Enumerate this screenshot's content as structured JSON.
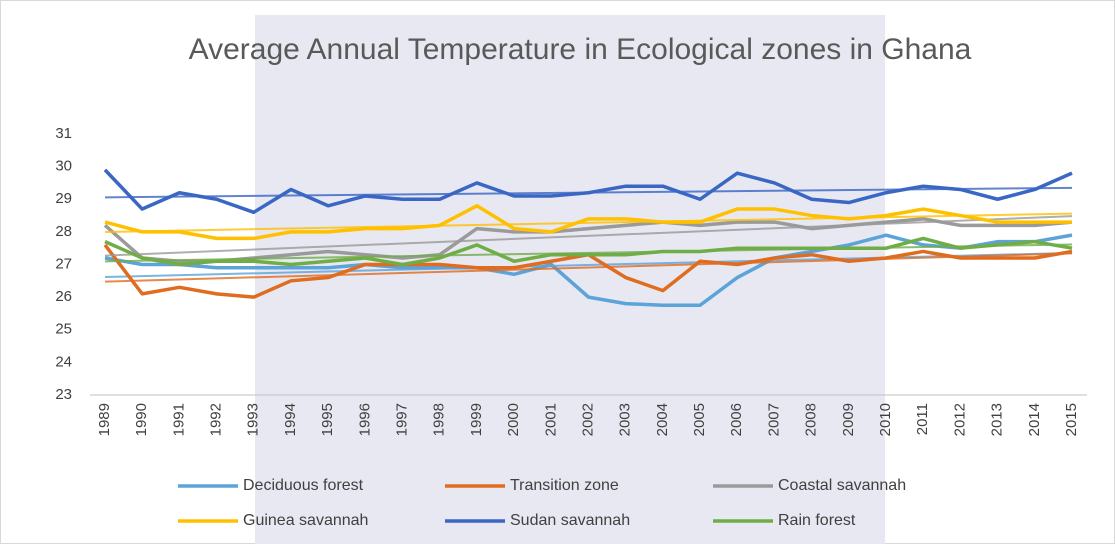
{
  "chart_data": {
    "type": "line",
    "title": "Average Annual Temperature in Ecological zones in Ghana",
    "categories": [
      "1989",
      "1990",
      "1991",
      "1992",
      "1993",
      "1994",
      "1995",
      "1996",
      "1997",
      "1998",
      "1999",
      "2000",
      "2001",
      "2002",
      "2003",
      "2004",
      "2005",
      "2006",
      "2007",
      "2008",
      "2009",
      "2010",
      "2011",
      "2012",
      "2013",
      "2014",
      "2015"
    ],
    "series": [
      {
        "name": "Deciduous forest",
        "color": "#5ba3d9",
        "values": [
          27.2,
          27.0,
          27.0,
          26.9,
          26.9,
          26.9,
          26.9,
          27.0,
          26.9,
          26.9,
          26.9,
          26.7,
          27.0,
          26.0,
          25.8,
          25.75,
          25.75,
          26.6,
          27.2,
          27.4,
          27.6,
          27.9,
          27.6,
          27.5,
          27.7,
          27.7,
          27.9
        ]
      },
      {
        "name": "Transition zone",
        "color": "#e06c1f",
        "values": [
          27.6,
          26.1,
          26.3,
          26.1,
          26.0,
          26.5,
          26.6,
          27.0,
          27.0,
          27.0,
          26.9,
          26.9,
          27.1,
          27.3,
          26.6,
          26.2,
          27.1,
          27.0,
          27.2,
          27.3,
          27.1,
          27.2,
          27.4,
          27.2,
          27.2,
          27.2,
          27.4
        ]
      },
      {
        "name": "Coastal savannah",
        "color": "#9a9a9a",
        "values": [
          28.2,
          27.2,
          27.1,
          27.1,
          27.2,
          27.3,
          27.4,
          27.3,
          27.2,
          27.3,
          28.1,
          28.0,
          28.0,
          28.1,
          28.2,
          28.3,
          28.2,
          28.3,
          28.3,
          28.1,
          28.2,
          28.3,
          28.4,
          28.2,
          28.2,
          28.2,
          28.3
        ]
      },
      {
        "name": "Guinea savannah",
        "color": "#ffc000",
        "values": [
          28.3,
          28.0,
          28.0,
          27.8,
          27.8,
          28.0,
          28.0,
          28.1,
          28.1,
          28.2,
          28.8,
          28.1,
          28.0,
          28.4,
          28.4,
          28.3,
          28.3,
          28.7,
          28.7,
          28.5,
          28.4,
          28.5,
          28.7,
          28.5,
          28.3,
          28.3,
          28.3
        ]
      },
      {
        "name": "Sudan savannah",
        "color": "#3a66c4",
        "values": [
          29.9,
          28.7,
          29.2,
          29.0,
          28.6,
          29.3,
          28.8,
          29.1,
          29.0,
          29.0,
          29.5,
          29.1,
          29.1,
          29.2,
          29.4,
          29.4,
          29.0,
          29.8,
          29.5,
          29.0,
          28.9,
          29.2,
          29.4,
          29.3,
          29.0,
          29.3,
          29.8
        ]
      },
      {
        "name": "Rain forest",
        "color": "#70ad47",
        "values": [
          27.7,
          27.2,
          27.0,
          27.1,
          27.1,
          27.0,
          27.1,
          27.2,
          27.0,
          27.2,
          27.6,
          27.1,
          27.3,
          27.3,
          27.3,
          27.4,
          27.4,
          27.5,
          27.5,
          27.5,
          27.5,
          27.5,
          27.8,
          27.5,
          27.6,
          27.7,
          27.5
        ]
      }
    ],
    "ylim": [
      23,
      31
    ],
    "yticks": [
      23,
      24,
      25,
      26,
      27,
      28,
      29,
      30,
      31
    ],
    "grid": false,
    "trendline": true,
    "legend": "bottom"
  }
}
